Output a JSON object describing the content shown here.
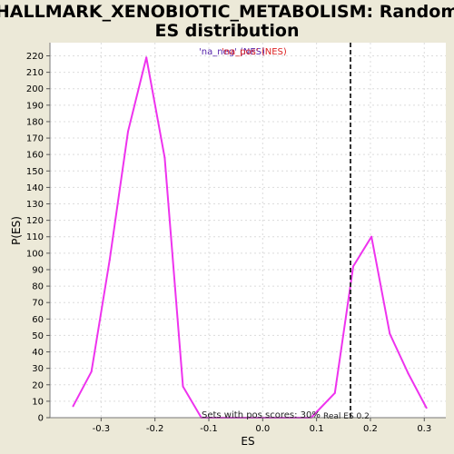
{
  "chart_data": {
    "type": "line",
    "title_line1": "HALLMARK_XENOBIOTIC_METABOLISM: Random",
    "title_line2": "ES distribution",
    "xlabel": "ES",
    "ylabel": "P(ES)",
    "xlim": [
      -0.395,
      0.34
    ],
    "ylim": [
      0,
      228
    ],
    "xticks": [
      -0.3,
      -0.2,
      -0.1,
      0.0,
      0.1,
      0.2,
      0.3
    ],
    "xtick_labels": [
      "-0.3",
      "-0.2",
      "-0.1",
      "0.0",
      "0.1",
      "0.2",
      "0.3"
    ],
    "yticks": [
      0,
      10,
      20,
      30,
      40,
      50,
      60,
      70,
      80,
      90,
      100,
      110,
      120,
      130,
      140,
      150,
      160,
      170,
      180,
      190,
      200,
      210,
      220
    ],
    "grid": true,
    "legend": {
      "position": "top-center",
      "entries": [
        {
          "text": "'na_neg' (NES)",
          "color": "#5522aa"
        },
        {
          "text": "'na_pos' (NES)",
          "color": "#dd2222"
        }
      ]
    },
    "series": [
      {
        "color": "#ee33ee",
        "x": [
          -0.352,
          -0.318,
          -0.284,
          -0.25,
          -0.216,
          -0.182,
          -0.148,
          -0.114,
          -0.08,
          -0.046,
          -0.012,
          0.022,
          0.056,
          0.09,
          0.134,
          0.168,
          0.202,
          0.236,
          0.27,
          0.304
        ],
        "y": [
          7,
          28,
          96,
          174,
          219,
          158,
          19,
          0,
          0,
          0,
          0,
          0,
          0,
          0,
          15,
          92,
          110,
          51,
          27,
          6
        ]
      }
    ],
    "real_es": {
      "value": 0.163,
      "label": "Real ES 0.2",
      "line_style": "dashed",
      "color": "#333333"
    },
    "annotation": "Sets with pos scores: 30%"
  }
}
